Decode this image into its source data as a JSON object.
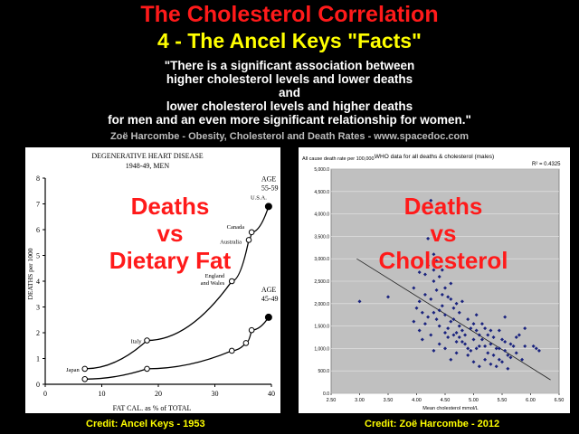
{
  "header": {
    "title": "The Cholesterol Correlation",
    "subtitle": "4 - The Ancel Keys \"Facts\"",
    "quote_lines": [
      "\"There is a significant association between",
      "higher cholesterol levels and lower deaths",
      "and",
      "lower cholesterol levels and higher deaths",
      "for men and an even more significant relationship for women.\""
    ],
    "attribution": "Zoë Harcombe - Obesity, Cholesterol and Death Rates - www.spacedoc.com"
  },
  "left_overlay": {
    "line1": "Deaths",
    "line2": "vs",
    "line3": "Dietary Fat"
  },
  "right_overlay": {
    "line1": "Deaths",
    "line2": "vs",
    "line3": "Cholesterol"
  },
  "credits": {
    "left": "Credit: Ancel Keys - 1953",
    "right": "Credit: Zoë Harcombe - 2012"
  },
  "colors": {
    "title": "#ff1a1a",
    "subtitle": "#ffff00",
    "point": "#1a237e",
    "plot_bg": "#c0c0c0"
  },
  "chart_data": [
    {
      "type": "line",
      "title": "DEGENERATIVE HEART DISEASE",
      "subtitle": "1948-49, MEN",
      "xlabel": "FAT CAL. as % of TOTAL",
      "ylabel": "DEATHS per 1000",
      "xlim": [
        0,
        40
      ],
      "ylim": [
        0,
        8
      ],
      "x_ticks": [
        "0",
        "10",
        "20",
        "30",
        "40"
      ],
      "y_ticks": [
        "0",
        "1",
        "2",
        "3",
        "4",
        "5",
        "6",
        "7",
        "8"
      ],
      "series": [
        {
          "name": "AGE 55-59",
          "points": [
            {
              "x": 7,
              "y": 0.6,
              "label": "Japan"
            },
            {
              "x": 18,
              "y": 1.7,
              "label": "Italy"
            },
            {
              "x": 33,
              "y": 4.0,
              "label": "England and Wales"
            },
            {
              "x": 36,
              "y": 5.6,
              "label": "Australia"
            },
            {
              "x": 36.5,
              "y": 5.9,
              "label": "Canada"
            },
            {
              "x": 39.5,
              "y": 6.9,
              "label": "U.S.A."
            }
          ]
        },
        {
          "name": "AGE 45-49",
          "points": [
            {
              "x": 7,
              "y": 0.2,
              "label": ""
            },
            {
              "x": 18,
              "y": 0.6,
              "label": ""
            },
            {
              "x": 33,
              "y": 1.3,
              "label": ""
            },
            {
              "x": 35.5,
              "y": 1.6,
              "label": ""
            },
            {
              "x": 36.5,
              "y": 2.1,
              "label": ""
            },
            {
              "x": 39.5,
              "y": 2.6,
              "label": ""
            }
          ]
        }
      ]
    },
    {
      "type": "scatter",
      "title": "WHO data for all deaths & cholesterol (males)",
      "ylabel": "All cause death rate per 100,000",
      "xlabel": "Mean cholesterol mmol/L",
      "r_squared": "R² = 0.4325",
      "xlim": [
        2.5,
        6.5
      ],
      "ylim": [
        0,
        5000
      ],
      "x_ticks": [
        "2.50",
        "3.00",
        "3.50",
        "4.00",
        "4.50",
        "5.00",
        "5.50",
        "6.00",
        "6.50"
      ],
      "y_ticks": [
        "0.0",
        "500.0",
        "1,000.0",
        "1,500.0",
        "2,000.0",
        "2,500.0",
        "3,000.0",
        "3,500.0",
        "4,000.0",
        "4,500.0",
        "5,000.0"
      ],
      "trendline": [
        [
          2.95,
          3000
        ],
        [
          6.35,
          300
        ]
      ],
      "points": [
        [
          3.0,
          2050
        ],
        [
          3.5,
          2150
        ],
        [
          4.05,
          2050
        ],
        [
          4.1,
          1800
        ],
        [
          4.15,
          2650
        ],
        [
          4.2,
          3450
        ],
        [
          4.25,
          4300
        ],
        [
          4.3,
          2750
        ],
        [
          4.3,
          2500
        ],
        [
          4.35,
          2300
        ],
        [
          4.2,
          2850
        ],
        [
          4.35,
          2950
        ],
        [
          4.4,
          2600
        ],
        [
          4.45,
          2200
        ],
        [
          4.5,
          2350
        ],
        [
          4.55,
          2150
        ],
        [
          4.6,
          2450
        ],
        [
          4.65,
          1650
        ],
        [
          4.7,
          2000
        ],
        [
          4.8,
          2050
        ],
        [
          4.0,
          1900
        ],
        [
          3.95,
          1600
        ],
        [
          4.05,
          1400
        ],
        [
          4.1,
          1200
        ],
        [
          4.15,
          1550
        ],
        [
          4.2,
          1700
        ],
        [
          4.25,
          1300
        ],
        [
          4.3,
          1800
        ],
        [
          4.35,
          1650
        ],
        [
          4.4,
          1500
        ],
        [
          4.45,
          1950
        ],
        [
          4.5,
          1750
        ],
        [
          4.55,
          1450
        ],
        [
          4.6,
          1600
        ],
        [
          4.65,
          1300
        ],
        [
          4.7,
          1150
        ],
        [
          4.75,
          1250
        ],
        [
          4.8,
          1400
        ],
        [
          4.85,
          1100
        ],
        [
          4.9,
          1650
        ],
        [
          4.95,
          1450
        ],
        [
          5.0,
          1200
        ],
        [
          5.05,
          1000
        ],
        [
          5.1,
          1300
        ],
        [
          5.15,
          1550
        ],
        [
          5.2,
          1050
        ],
        [
          5.25,
          900
        ],
        [
          5.3,
          1100
        ],
        [
          5.35,
          1250
        ],
        [
          5.4,
          1000
        ],
        [
          5.45,
          1400
        ],
        [
          5.5,
          1200
        ],
        [
          5.55,
          950
        ],
        [
          5.6,
          850
        ],
        [
          5.65,
          1100
        ],
        [
          5.7,
          1050
        ],
        [
          5.75,
          900
        ],
        [
          5.8,
          1300
        ],
        [
          5.9,
          1050
        ],
        [
          6.1,
          1000
        ],
        [
          6.15,
          950
        ],
        [
          5.9,
          1450
        ],
        [
          5.55,
          1700
        ],
        [
          5.05,
          1750
        ],
        [
          4.9,
          850
        ],
        [
          5.0,
          700
        ],
        [
          5.1,
          600
        ],
        [
          5.2,
          750
        ],
        [
          5.3,
          650
        ],
        [
          5.4,
          600
        ],
        [
          5.5,
          700
        ],
        [
          5.6,
          550
        ],
        [
          4.6,
          750
        ],
        [
          4.7,
          900
        ],
        [
          4.5,
          1000
        ],
        [
          4.4,
          1100
        ],
        [
          4.3,
          950
        ],
        [
          4.55,
          1250
        ],
        [
          4.75,
          1500
        ],
        [
          4.85,
          1300
        ],
        [
          5.15,
          1200
        ],
        [
          5.35,
          850
        ],
        [
          5.45,
          1000
        ],
        [
          5.65,
          800
        ],
        [
          4.95,
          950
        ],
        [
          5.25,
          1300
        ],
        [
          4.65,
          1900
        ],
        [
          5.0,
          1550
        ],
        [
          4.25,
          2100
        ],
        [
          4.05,
          2700
        ],
        [
          4.3,
          3100
        ],
        [
          4.45,
          2750
        ],
        [
          4.15,
          2200
        ],
        [
          3.95,
          2350
        ],
        [
          4.75,
          1800
        ],
        [
          5.2,
          1450
        ],
        [
          5.1,
          1050
        ],
        [
          4.8,
          1150
        ],
        [
          4.9,
          1000
        ],
        [
          5.05,
          1400
        ],
        [
          4.4,
          1850
        ],
        [
          4.6,
          2100
        ],
        [
          5.3,
          1400
        ],
        [
          5.45,
          750
        ],
        [
          5.55,
          1150
        ],
        [
          5.75,
          1250
        ],
        [
          5.85,
          750
        ],
        [
          6.05,
          1050
        ],
        [
          4.5,
          1350
        ],
        [
          4.7,
          1350
        ]
      ]
    }
  ]
}
